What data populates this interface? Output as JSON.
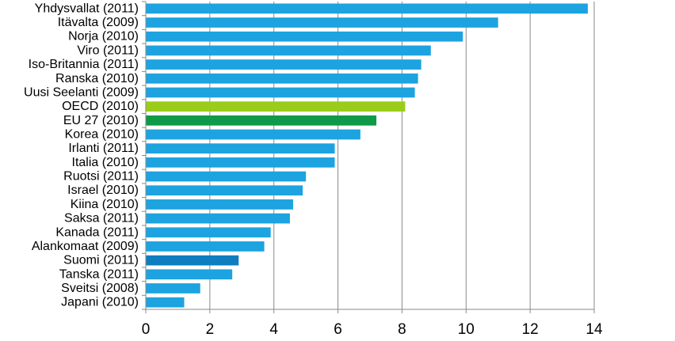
{
  "chart_data": {
    "type": "bar",
    "orientation": "horizontal",
    "categories": [
      "Yhdysvallat (2011)",
      "Itävalta (2009)",
      "Norja (2010)",
      "Viro (2011)",
      "Iso-Britannia (2011)",
      "Ranska (2010)",
      "Uusi Seelanti (2009)",
      "OECD (2010)",
      "EU 27 (2010)",
      "Korea (2010)",
      "Irlanti (2011)",
      "Italia (2010)",
      "Ruotsi (2011)",
      "Israel (2010)",
      "Kiina (2010)",
      "Saksa (2011)",
      "Kanada (2011)",
      "Alankomaat (2009)",
      "Suomi (2011)",
      "Tanska (2011)",
      "Sveitsi (2008)",
      "Japani (2010)"
    ],
    "values": [
      13.8,
      11.0,
      9.9,
      8.9,
      8.6,
      8.5,
      8.4,
      8.1,
      7.2,
      6.7,
      5.9,
      5.9,
      5.0,
      4.9,
      4.6,
      4.5,
      3.9,
      3.7,
      2.9,
      2.7,
      1.7,
      1.2
    ],
    "bar_colors": [
      "#1CA3E0",
      "#1CA3E0",
      "#1CA3E0",
      "#1CA3E0",
      "#1CA3E0",
      "#1CA3E0",
      "#1CA3E0",
      "#9ACD1A",
      "#0E9A47",
      "#1CA3E0",
      "#1CA3E0",
      "#1CA3E0",
      "#1CA3E0",
      "#1CA3E0",
      "#1CA3E0",
      "#1CA3E0",
      "#1CA3E0",
      "#1CA3E0",
      "#0F7EC0",
      "#1CA3E0",
      "#1CA3E0",
      "#1CA3E0"
    ],
    "xlim": [
      0,
      14
    ],
    "xticks": [
      "0",
      "2",
      "4",
      "6",
      "8",
      "10",
      "12",
      "14"
    ],
    "gridlines": "vertical",
    "legend": "none",
    "title": "",
    "xlabel": "",
    "ylabel": ""
  }
}
